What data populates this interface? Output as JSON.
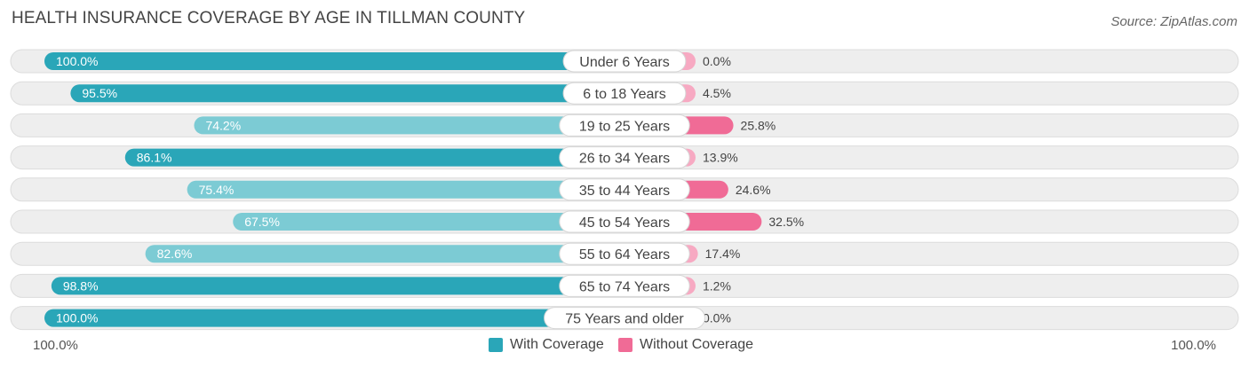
{
  "title": "HEALTH INSURANCE COVERAGE BY AGE IN TILLMAN COUNTY",
  "source": "Source: ZipAtlas.com",
  "colors": {
    "with_coverage": "#2aa6b8",
    "with_coverage_light": "#7ccbd4",
    "without_coverage": "#f06b96",
    "without_coverage_light": "#f7a9c2"
  },
  "chart_data": {
    "type": "bar",
    "orientation": "horizontal-diverging",
    "title": "HEALTH INSURANCE COVERAGE BY AGE IN TILLMAN COUNTY",
    "categories": [
      "Under 6 Years",
      "6 to 18 Years",
      "19 to 25 Years",
      "26 to 34 Years",
      "35 to 44 Years",
      "45 to 54 Years",
      "55 to 64 Years",
      "65 to 74 Years",
      "75 Years and older"
    ],
    "series": [
      {
        "name": "With Coverage",
        "values": [
          100.0,
          95.5,
          74.2,
          86.1,
          75.4,
          67.5,
          82.6,
          98.8,
          100.0
        ],
        "labels": [
          "100.0%",
          "95.5%",
          "74.2%",
          "86.1%",
          "75.4%",
          "67.5%",
          "82.6%",
          "98.8%",
          "100.0%"
        ]
      },
      {
        "name": "Without Coverage",
        "values": [
          0.0,
          4.5,
          25.8,
          13.9,
          24.6,
          32.5,
          17.4,
          1.2,
          0.0
        ],
        "labels": [
          "0.0%",
          "4.5%",
          "25.8%",
          "13.9%",
          "24.6%",
          "32.5%",
          "17.4%",
          "1.2%",
          "0.0%"
        ]
      }
    ],
    "axis": {
      "left_label": "100.0%",
      "right_label": "100.0%",
      "max": 100
    },
    "legend": [
      "With Coverage",
      "Without Coverage"
    ],
    "legend_position": "bottom-center"
  }
}
